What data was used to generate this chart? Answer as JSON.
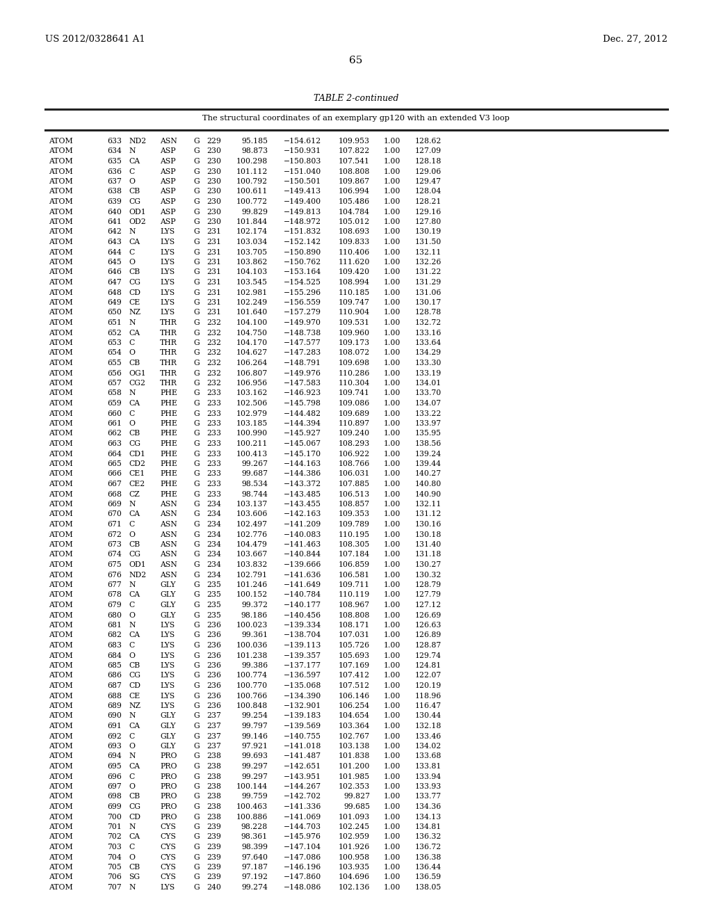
{
  "header_left": "US 2012/0328641 A1",
  "header_right": "Dec. 27, 2012",
  "page_number": "65",
  "table_title": "TABLE 2-continued",
  "table_subtitle": "The structural coordinates of an exemplary gp120 with an extended V3 loop",
  "rows": [
    [
      "ATOM",
      "633",
      "ND2",
      "ASN",
      "G",
      "229",
      "95.185",
      "−154.612",
      "109.953",
      "1.00",
      "128.62"
    ],
    [
      "ATOM",
      "634",
      "N",
      "ASP",
      "G",
      "230",
      "98.873",
      "−150.931",
      "107.822",
      "1.00",
      "127.09"
    ],
    [
      "ATOM",
      "635",
      "CA",
      "ASP",
      "G",
      "230",
      "100.298",
      "−150.803",
      "107.541",
      "1.00",
      "128.18"
    ],
    [
      "ATOM",
      "636",
      "C",
      "ASP",
      "G",
      "230",
      "101.112",
      "−151.040",
      "108.808",
      "1.00",
      "129.06"
    ],
    [
      "ATOM",
      "637",
      "O",
      "ASP",
      "G",
      "230",
      "100.792",
      "−150.501",
      "109.867",
      "1.00",
      "129.47"
    ],
    [
      "ATOM",
      "638",
      "CB",
      "ASP",
      "G",
      "230",
      "100.611",
      "−149.413",
      "106.994",
      "1.00",
      "128.04"
    ],
    [
      "ATOM",
      "639",
      "CG",
      "ASP",
      "G",
      "230",
      "100.772",
      "−149.400",
      "105.486",
      "1.00",
      "128.21"
    ],
    [
      "ATOM",
      "640",
      "OD1",
      "ASP",
      "G",
      "230",
      "99.829",
      "−149.813",
      "104.784",
      "1.00",
      "129.16"
    ],
    [
      "ATOM",
      "641",
      "OD2",
      "ASP",
      "G",
      "230",
      "101.844",
      "−148.972",
      "105.012",
      "1.00",
      "127.80"
    ],
    [
      "ATOM",
      "642",
      "N",
      "LYS",
      "G",
      "231",
      "102.174",
      "−151.832",
      "108.693",
      "1.00",
      "130.19"
    ],
    [
      "ATOM",
      "643",
      "CA",
      "LYS",
      "G",
      "231",
      "103.034",
      "−152.142",
      "109.833",
      "1.00",
      "131.50"
    ],
    [
      "ATOM",
      "644",
      "C",
      "LYS",
      "G",
      "231",
      "103.705",
      "−150.890",
      "110.406",
      "1.00",
      "132.11"
    ],
    [
      "ATOM",
      "645",
      "O",
      "LYS",
      "G",
      "231",
      "103.862",
      "−150.762",
      "111.620",
      "1.00",
      "132.26"
    ],
    [
      "ATOM",
      "646",
      "CB",
      "LYS",
      "G",
      "231",
      "104.103",
      "−153.164",
      "109.420",
      "1.00",
      "131.22"
    ],
    [
      "ATOM",
      "647",
      "CG",
      "LYS",
      "G",
      "231",
      "103.545",
      "−154.525",
      "108.994",
      "1.00",
      "131.29"
    ],
    [
      "ATOM",
      "648",
      "CD",
      "LYS",
      "G",
      "231",
      "102.981",
      "−155.296",
      "110.185",
      "1.00",
      "131.06"
    ],
    [
      "ATOM",
      "649",
      "CE",
      "LYS",
      "G",
      "231",
      "102.249",
      "−156.559",
      "109.747",
      "1.00",
      "130.17"
    ],
    [
      "ATOM",
      "650",
      "NZ",
      "LYS",
      "G",
      "231",
      "101.640",
      "−157.279",
      "110.904",
      "1.00",
      "128.78"
    ],
    [
      "ATOM",
      "651",
      "N",
      "THR",
      "G",
      "232",
      "104.100",
      "−149.970",
      "109.531",
      "1.00",
      "132.72"
    ],
    [
      "ATOM",
      "652",
      "CA",
      "THR",
      "G",
      "232",
      "104.750",
      "−148.738",
      "109.960",
      "1.00",
      "133.16"
    ],
    [
      "ATOM",
      "653",
      "C",
      "THR",
      "G",
      "232",
      "104.170",
      "−147.577",
      "109.173",
      "1.00",
      "133.64"
    ],
    [
      "ATOM",
      "654",
      "O",
      "THR",
      "G",
      "232",
      "104.627",
      "−147.283",
      "108.072",
      "1.00",
      "134.29"
    ],
    [
      "ATOM",
      "655",
      "CB",
      "THR",
      "G",
      "232",
      "106.264",
      "−148.791",
      "109.698",
      "1.00",
      "133.30"
    ],
    [
      "ATOM",
      "656",
      "OG1",
      "THR",
      "G",
      "232",
      "106.807",
      "−149.976",
      "110.286",
      "1.00",
      "133.19"
    ],
    [
      "ATOM",
      "657",
      "CG2",
      "THR",
      "G",
      "232",
      "106.956",
      "−147.583",
      "110.304",
      "1.00",
      "134.01"
    ],
    [
      "ATOM",
      "658",
      "N",
      "PHE",
      "G",
      "233",
      "103.162",
      "−146.923",
      "109.741",
      "1.00",
      "133.70"
    ],
    [
      "ATOM",
      "659",
      "CA",
      "PHE",
      "G",
      "233",
      "102.506",
      "−145.798",
      "109.086",
      "1.00",
      "134.07"
    ],
    [
      "ATOM",
      "660",
      "C",
      "PHE",
      "G",
      "233",
      "102.979",
      "−144.482",
      "109.689",
      "1.00",
      "133.22"
    ],
    [
      "ATOM",
      "661",
      "O",
      "PHE",
      "G",
      "233",
      "103.185",
      "−144.394",
      "110.897",
      "1.00",
      "133.97"
    ],
    [
      "ATOM",
      "662",
      "CB",
      "PHE",
      "G",
      "233",
      "100.990",
      "−145.927",
      "109.240",
      "1.00",
      "135.95"
    ],
    [
      "ATOM",
      "663",
      "CG",
      "PHE",
      "G",
      "233",
      "100.211",
      "−145.067",
      "108.293",
      "1.00",
      "138.56"
    ],
    [
      "ATOM",
      "664",
      "CD1",
      "PHE",
      "G",
      "233",
      "100.413",
      "−145.170",
      "106.922",
      "1.00",
      "139.24"
    ],
    [
      "ATOM",
      "665",
      "CD2",
      "PHE",
      "G",
      "233",
      "99.267",
      "−144.163",
      "108.766",
      "1.00",
      "139.44"
    ],
    [
      "ATOM",
      "666",
      "CE1",
      "PHE",
      "G",
      "233",
      "99.687",
      "−144.386",
      "106.031",
      "1.00",
      "140.27"
    ],
    [
      "ATOM",
      "667",
      "CE2",
      "PHE",
      "G",
      "233",
      "98.534",
      "−143.372",
      "107.885",
      "1.00",
      "140.80"
    ],
    [
      "ATOM",
      "668",
      "CZ",
      "PHE",
      "G",
      "233",
      "98.744",
      "−143.485",
      "106.513",
      "1.00",
      "140.90"
    ],
    [
      "ATOM",
      "669",
      "N",
      "ASN",
      "G",
      "234",
      "103.137",
      "−143.455",
      "108.857",
      "1.00",
      "132.11"
    ],
    [
      "ATOM",
      "670",
      "CA",
      "ASN",
      "G",
      "234",
      "103.606",
      "−142.163",
      "109.353",
      "1.00",
      "131.12"
    ],
    [
      "ATOM",
      "671",
      "C",
      "ASN",
      "G",
      "234",
      "102.497",
      "−141.209",
      "109.789",
      "1.00",
      "130.16"
    ],
    [
      "ATOM",
      "672",
      "O",
      "ASN",
      "G",
      "234",
      "102.776",
      "−140.083",
      "110.195",
      "1.00",
      "130.18"
    ],
    [
      "ATOM",
      "673",
      "CB",
      "ASN",
      "G",
      "234",
      "104.479",
      "−141.463",
      "108.305",
      "1.00",
      "131.40"
    ],
    [
      "ATOM",
      "674",
      "CG",
      "ASN",
      "G",
      "234",
      "103.667",
      "−140.844",
      "107.184",
      "1.00",
      "131.18"
    ],
    [
      "ATOM",
      "675",
      "OD1",
      "ASN",
      "G",
      "234",
      "103.832",
      "−139.666",
      "106.859",
      "1.00",
      "130.27"
    ],
    [
      "ATOM",
      "676",
      "ND2",
      "ASN",
      "G",
      "234",
      "102.791",
      "−141.636",
      "106.581",
      "1.00",
      "130.32"
    ],
    [
      "ATOM",
      "677",
      "N",
      "GLY",
      "G",
      "235",
      "101.246",
      "−141.649",
      "109.711",
      "1.00",
      "128.79"
    ],
    [
      "ATOM",
      "678",
      "CA",
      "GLY",
      "G",
      "235",
      "100.152",
      "−140.784",
      "110.119",
      "1.00",
      "127.79"
    ],
    [
      "ATOM",
      "679",
      "C",
      "GLY",
      "G",
      "235",
      "99.372",
      "−140.177",
      "108.967",
      "1.00",
      "127.12"
    ],
    [
      "ATOM",
      "680",
      "O",
      "GLY",
      "G",
      "235",
      "98.186",
      "−140.456",
      "108.808",
      "1.00",
      "126.69"
    ],
    [
      "ATOM",
      "681",
      "N",
      "LYS",
      "G",
      "236",
      "100.023",
      "−139.334",
      "108.171",
      "1.00",
      "126.63"
    ],
    [
      "ATOM",
      "682",
      "CA",
      "LYS",
      "G",
      "236",
      "99.361",
      "−138.704",
      "107.031",
      "1.00",
      "126.89"
    ],
    [
      "ATOM",
      "683",
      "C",
      "LYS",
      "G",
      "236",
      "100.036",
      "−139.113",
      "105.726",
      "1.00",
      "128.87"
    ],
    [
      "ATOM",
      "684",
      "O",
      "LYS",
      "G",
      "236",
      "101.238",
      "−139.357",
      "105.693",
      "1.00",
      "129.74"
    ],
    [
      "ATOM",
      "685",
      "CB",
      "LYS",
      "G",
      "236",
      "99.386",
      "−137.177",
      "107.169",
      "1.00",
      "124.81"
    ],
    [
      "ATOM",
      "686",
      "CG",
      "LYS",
      "G",
      "236",
      "100.774",
      "−136.597",
      "107.412",
      "1.00",
      "122.07"
    ],
    [
      "ATOM",
      "687",
      "CD",
      "LYS",
      "G",
      "236",
      "100.770",
      "−135.068",
      "107.512",
      "1.00",
      "120.19"
    ],
    [
      "ATOM",
      "688",
      "CE",
      "LYS",
      "G",
      "236",
      "100.766",
      "−134.390",
      "106.146",
      "1.00",
      "118.96"
    ],
    [
      "ATOM",
      "689",
      "NZ",
      "LYS",
      "G",
      "236",
      "100.848",
      "−132.901",
      "106.254",
      "1.00",
      "116.47"
    ],
    [
      "ATOM",
      "690",
      "N",
      "GLY",
      "G",
      "237",
      "99.254",
      "−139.183",
      "104.654",
      "1.00",
      "130.44"
    ],
    [
      "ATOM",
      "691",
      "CA",
      "GLY",
      "G",
      "237",
      "99.797",
      "−139.569",
      "103.364",
      "1.00",
      "132.18"
    ],
    [
      "ATOM",
      "692",
      "C",
      "GLY",
      "G",
      "237",
      "99.146",
      "−140.755",
      "102.767",
      "1.00",
      "133.46"
    ],
    [
      "ATOM",
      "693",
      "O",
      "GLY",
      "G",
      "237",
      "97.921",
      "−141.018",
      "103.138",
      "1.00",
      "134.02"
    ],
    [
      "ATOM",
      "694",
      "N",
      "PRO",
      "G",
      "238",
      "99.693",
      "−141.487",
      "101.838",
      "1.00",
      "133.68"
    ],
    [
      "ATOM",
      "695",
      "CA",
      "PRO",
      "G",
      "238",
      "99.297",
      "−142.651",
      "101.200",
      "1.00",
      "133.81"
    ],
    [
      "ATOM",
      "696",
      "C",
      "PRO",
      "G",
      "238",
      "99.297",
      "−143.951",
      "101.985",
      "1.00",
      "133.94"
    ],
    [
      "ATOM",
      "697",
      "O",
      "PRO",
      "G",
      "238",
      "100.144",
      "−144.267",
      "102.353",
      "1.00",
      "133.93"
    ],
    [
      "ATOM",
      "698",
      "CB",
      "PRO",
      "G",
      "238",
      "99.759",
      "−142.702",
      "99.827",
      "1.00",
      "133.77"
    ],
    [
      "ATOM",
      "699",
      "CG",
      "PRO",
      "G",
      "238",
      "100.463",
      "−141.336",
      "99.685",
      "1.00",
      "134.36"
    ],
    [
      "ATOM",
      "700",
      "CD",
      "PRO",
      "G",
      "238",
      "100.886",
      "−141.069",
      "101.093",
      "1.00",
      "134.13"
    ],
    [
      "ATOM",
      "701",
      "N",
      "CYS",
      "G",
      "239",
      "98.228",
      "−144.703",
      "102.245",
      "1.00",
      "134.81"
    ],
    [
      "ATOM",
      "702",
      "CA",
      "CYS",
      "G",
      "239",
      "98.361",
      "−145.976",
      "102.959",
      "1.00",
      "136.32"
    ],
    [
      "ATOM",
      "703",
      "C",
      "CYS",
      "G",
      "239",
      "98.399",
      "−147.104",
      "101.926",
      "1.00",
      "136.72"
    ],
    [
      "ATOM",
      "704",
      "O",
      "CYS",
      "G",
      "239",
      "97.640",
      "−147.086",
      "100.958",
      "1.00",
      "136.38"
    ],
    [
      "ATOM",
      "705",
      "CB",
      "CYS",
      "G",
      "239",
      "97.187",
      "−146.196",
      "103.935",
      "1.00",
      "136.44"
    ],
    [
      "ATOM",
      "706",
      "SG",
      "CYS",
      "G",
      "239",
      "97.192",
      "−147.860",
      "104.696",
      "1.00",
      "136.59"
    ],
    [
      "ATOM",
      "707",
      "N",
      "LYS",
      "G",
      "240",
      "99.274",
      "−148.086",
      "102.136",
      "1.00",
      "138.05"
    ]
  ],
  "bg_color": "#ffffff",
  "text_color": "#000000",
  "font_size": 7.8
}
